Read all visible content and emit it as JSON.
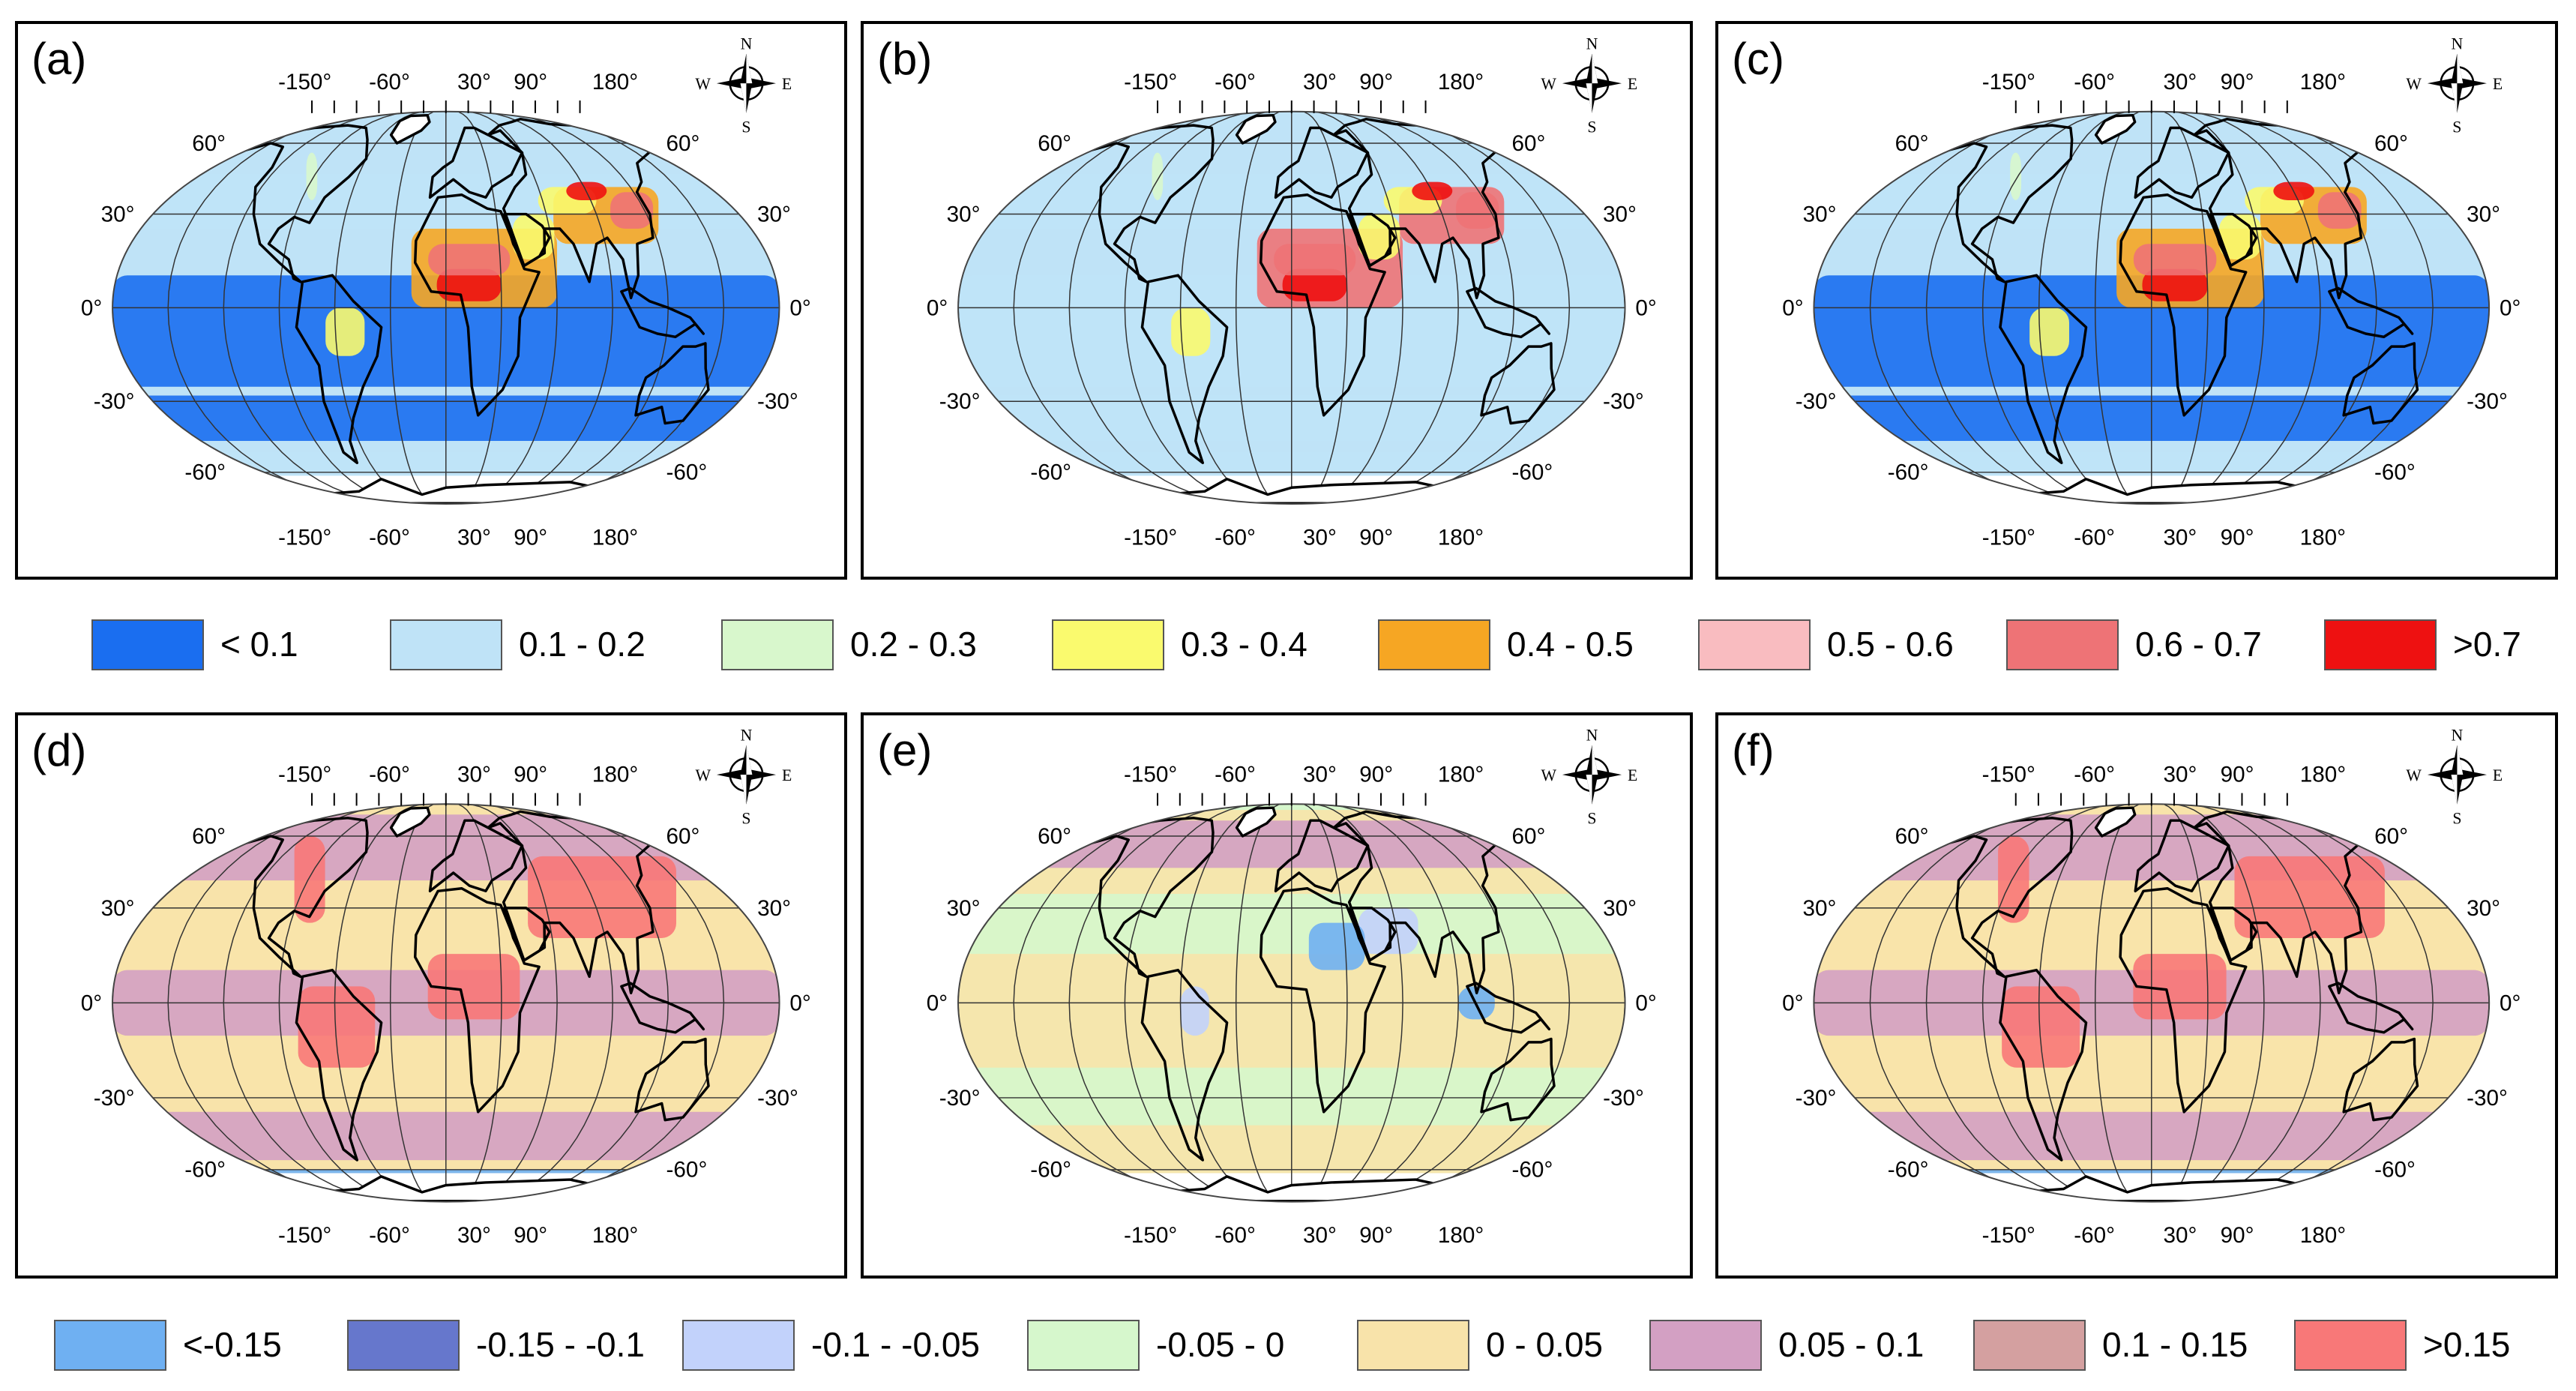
{
  "legend_top": [
    {
      "label": "< 0.1",
      "color": "#1a6ef0"
    },
    {
      "label": "0.1 - 0.2",
      "color": "#bfe3f7"
    },
    {
      "label": "0.2 - 0.3",
      "color": "#d8f7cc"
    },
    {
      "label": "0.3 - 0.4",
      "color": "#fafa6e"
    },
    {
      "label": "0.4 - 0.5",
      "color": "#f6a623"
    },
    {
      "label": "0.5 - 0.6",
      "color": "#f9bcc0"
    },
    {
      "label": "0.6 - 0.7",
      "color": "#ee7376"
    },
    {
      "label": ">0.7",
      "color": "#ee1111"
    }
  ],
  "legend_bottom": [
    {
      "label": "<-0.15",
      "color": "#6fb0f2"
    },
    {
      "label": "-0.15 - -0.1",
      "color": "#6677cc"
    },
    {
      "label": "-0.1 - -0.05",
      "color": "#c2d2fb"
    },
    {
      "label": "-0.05 - 0",
      "color": "#d6f7cc"
    },
    {
      "label": "0 - 0.05",
      "color": "#f8e3aa"
    },
    {
      "label": "0.05 - 0.1",
      "color": "#d3a0c3"
    },
    {
      "label": "0.1 - 0.15",
      "color": "#d4a0a0"
    },
    {
      "label": ">0.15",
      "color": "#f87878"
    }
  ],
  "panels": [
    {
      "id": "a",
      "label": "(a)",
      "scheme": "aod",
      "variant": 0
    },
    {
      "id": "b",
      "label": "(b)",
      "scheme": "aod",
      "variant": 1
    },
    {
      "id": "c",
      "label": "(c)",
      "scheme": "aod",
      "variant": 2
    },
    {
      "id": "d",
      "label": "(d)",
      "scheme": "diff",
      "variant": 0
    },
    {
      "id": "e",
      "label": "(e)",
      "scheme": "diff",
      "variant": 1
    },
    {
      "id": "f",
      "label": "(f)",
      "scheme": "diff",
      "variant": 2
    }
  ],
  "map_labels": {
    "lon_ticks": [
      "-150°",
      "-60°",
      "30°",
      "90°",
      "180°"
    ],
    "lat_left": [
      "60°",
      "30°",
      "0°",
      "-30°",
      "-60°"
    ],
    "lat_right": [
      "60°",
      "30°",
      "0°",
      "-30°",
      "-60°"
    ]
  },
  "compass": {
    "n": "N",
    "s": "S",
    "e": "E",
    "w": "W"
  }
}
